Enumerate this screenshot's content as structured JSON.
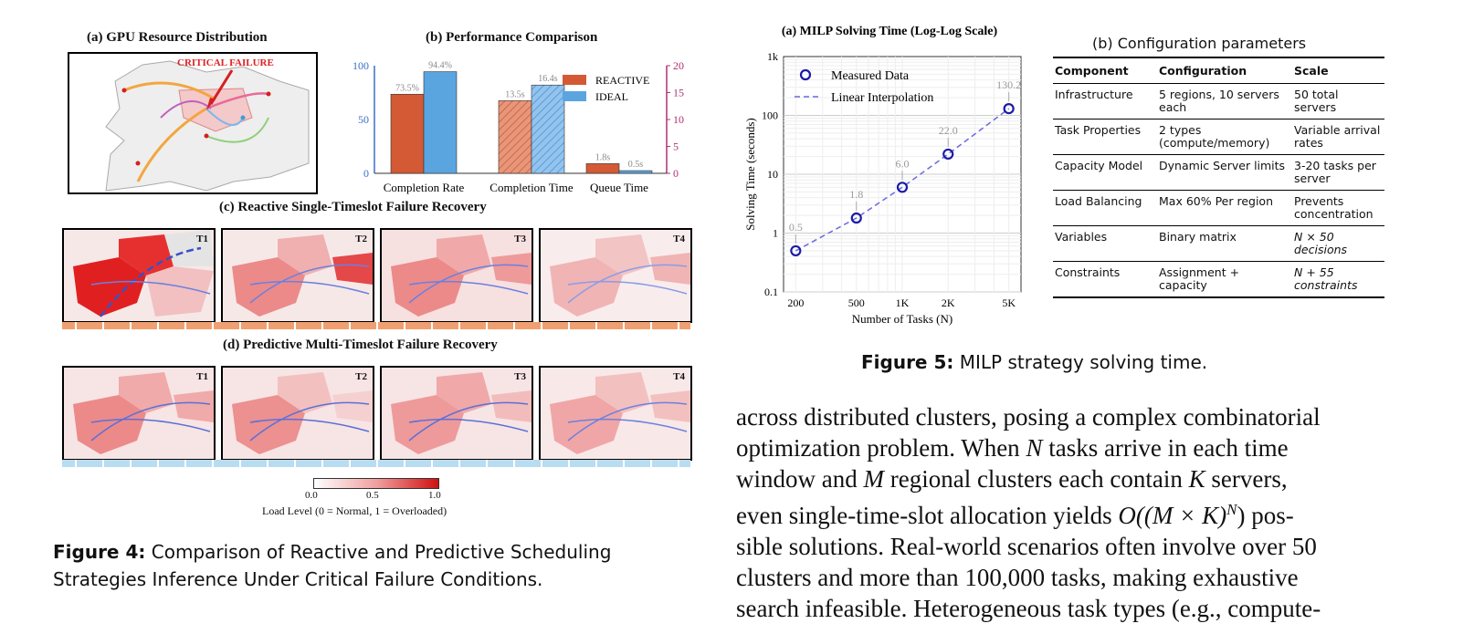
{
  "figure4": {
    "panel_a_title": "(a) GPU Resource Distribution",
    "critical_failure_label": "CRITICAL FAILURE",
    "panel_b_title": "(b) Performance Comparison",
    "panel_c_title": "(c) Reactive Single-Timeslot Failure Recovery",
    "panel_d_title": "(d) Predictive Multi-Timeslot Failure Recovery",
    "timeslots": [
      "T1",
      "T2",
      "T3",
      "T4"
    ],
    "colorbar_ticks": [
      "0.0",
      "0.5",
      "1.0"
    ],
    "colorbar_label": "Load Level (0 = Normal, 1 = Overloaded)",
    "caption_label": "Figure 4:",
    "caption_text": "Comparison of Reactive and Predictive Scheduling Strategies Inference Under Critical Failure Conditions."
  },
  "figure5": {
    "panel_b_title": "(b) Configuration parameters",
    "table": {
      "headers": [
        "Component",
        "Configuration",
        "Scale"
      ],
      "rows": [
        [
          "Infrastructure",
          "5 regions, 10 servers each",
          "50 total servers"
        ],
        [
          "Task Properties",
          "2 types (compute/memory)",
          "Variable arrival rates"
        ],
        [
          "Capacity Model",
          "Dynamic Server limits",
          "3-20 tasks per server"
        ],
        [
          "Load Balancing",
          "Max 60% Per region",
          "Prevents concentration"
        ],
        [
          "Variables",
          "Binary matrix",
          "N × 50 decisions"
        ],
        [
          "Constraints",
          "Assignment + capacity",
          "N + 55 constraints"
        ]
      ]
    },
    "caption_label": "Figure 5:",
    "caption_text": "MILP strategy solving time."
  },
  "body_text": {
    "line1": "across distributed clusters, posing a complex combinatorial",
    "line2a": "optimization problem. When ",
    "N": "N",
    "line2b": " tasks arrive in each time",
    "line3a": "window and ",
    "M": "M",
    "line3b": " regional clusters each contain ",
    "K": "K",
    "line3c": " servers,",
    "line4a": "even single-time-slot allocation yields ",
    "complexity": "O((M × K)",
    "complexity_exp": "N",
    "line4b": ") pos-",
    "line5": "sible solutions. Real-world scenarios often involve over 50",
    "line6": "clusters and more than 100,000 tasks, making exhaustive",
    "line7": "search infeasible. Heterogeneous task types (e.g., compute-"
  },
  "chart_data": [
    {
      "type": "bar",
      "title": "(b) Performance Comparison",
      "categories": [
        "Completion Rate",
        "Completion Time",
        "Queue Time"
      ],
      "series": [
        {
          "name": "REACTIVE",
          "values": [
            73.5,
            13.5,
            1.8
          ],
          "labels": [
            "73.5%",
            "13.5s",
            "1.8s"
          ],
          "color": "#d35a35"
        },
        {
          "name": "IDEAL",
          "values": [
            94.4,
            16.4,
            0.5
          ],
          "labels": [
            "94.4%",
            "16.4s",
            "0.5s"
          ],
          "color": "#5aa5e0"
        }
      ],
      "left_axis": {
        "ticks": [
          "0",
          "50",
          "100"
        ],
        "ylim": [
          0,
          100
        ],
        "color": "#3a6fc4"
      },
      "right_axis": {
        "ticks": [
          "0",
          "5",
          "10",
          "15",
          "20"
        ],
        "ylim": [
          0,
          20
        ],
        "color": "#b03070"
      },
      "legend": "top-right"
    },
    {
      "type": "line",
      "title": "(a) MILP Solving Time (Log-Log Scale)",
      "xlabel": "Number of Tasks (N)",
      "ylabel": "Solving Time (seconds)",
      "x": [
        200,
        500,
        1000,
        2000,
        5000
      ],
      "x_tick_labels": [
        "200",
        "500",
        "1K",
        "2K",
        "5K"
      ],
      "y_tick_labels": [
        "0.1",
        "1",
        "10",
        "100",
        "1k"
      ],
      "xscale": "log",
      "yscale": "log",
      "ylim": [
        0.1,
        1000
      ],
      "grid": true,
      "legend": "top-left",
      "series": [
        {
          "name": "Measured Data",
          "values": [
            0.5,
            1.8,
            6.0,
            22.0,
            130.2
          ],
          "labels": [
            "0.5",
            "1.8",
            "6.0",
            "22.0",
            "130.2"
          ],
          "color": "#1a1aa8"
        },
        {
          "name": "Linear Interpolation",
          "values": [
            0.5,
            1.8,
            6.0,
            22.0,
            130.2
          ],
          "color": "#6a6ae0"
        }
      ]
    }
  ]
}
